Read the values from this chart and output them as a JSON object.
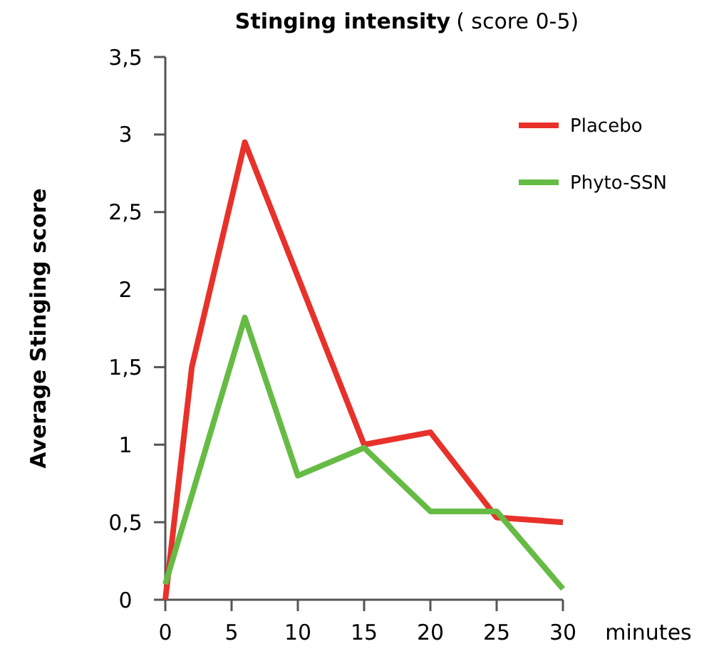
{
  "chart_data": {
    "type": "line",
    "title": "Stinging intensity",
    "subtitle": "( score 0-5)",
    "ylabel": "Average Stinging score",
    "xlabel": "minutes",
    "xlim": [
      0,
      30
    ],
    "xticks": [
      0,
      5,
      10,
      15,
      20,
      25,
      30
    ],
    "ylim": [
      0,
      3.5
    ],
    "yticks": [
      0,
      {
        "value": 0.5,
        "label": "0,5"
      },
      1,
      {
        "value": 1.5,
        "label": "1,5"
      },
      2,
      {
        "value": 2.5,
        "label": "2,5"
      },
      3,
      {
        "value": 3.5,
        "label": "3,5"
      }
    ],
    "grid": false,
    "legend": "top right",
    "marker": "none",
    "line_style": "solid",
    "series": [
      {
        "name": "Placebo",
        "color": "#e8312a",
        "x": [
          0,
          2,
          6,
          15,
          20,
          25,
          30
        ],
        "values": [
          0,
          1.5,
          2.95,
          1.0,
          1.08,
          0.53,
          0.5
        ]
      },
      {
        "name": "Phyto-SSN",
        "color": "#66bb44",
        "x": [
          0,
          6,
          10,
          15,
          20,
          25,
          30
        ],
        "values": [
          0.1,
          1.82,
          0.8,
          0.98,
          0.57,
          0.57,
          0.07
        ]
      }
    ]
  }
}
